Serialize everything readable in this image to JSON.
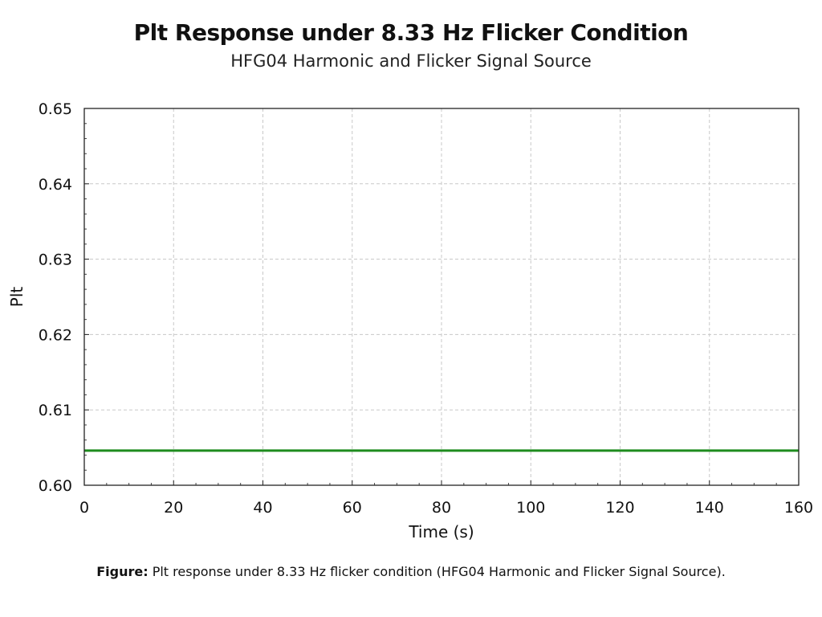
{
  "chart_data": {
    "type": "line",
    "title": "Plt Response under 8.33 Hz Flicker Condition",
    "subtitle": "HFG04 Harmonic and Flicker Signal Source",
    "xlabel": "Time (s)",
    "ylabel": "Plt",
    "xlim": [
      0,
      160
    ],
    "ylim": [
      0.6,
      0.65
    ],
    "x_ticks": [
      "0",
      "20",
      "40",
      "60",
      "80",
      "100",
      "120",
      "140",
      "160"
    ],
    "y_ticks": [
      "0.60",
      "0.61",
      "0.62",
      "0.63",
      "0.64",
      "0.65"
    ],
    "grid": true,
    "series": [
      {
        "color": "#1e8c1e",
        "x": [
          0,
          160
        ],
        "y": [
          0.6046,
          0.6046
        ]
      }
    ]
  },
  "caption": {
    "lead": "Figure:",
    "text": " Plt  response under 8.33 Hz flicker condition (HFG04 Harmonic and Flicker Signal Source)."
  }
}
